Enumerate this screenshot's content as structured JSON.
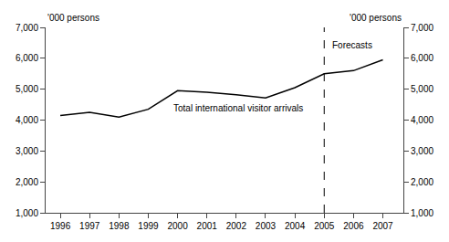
{
  "chart_data": {
    "type": "line",
    "x": [
      1996,
      1997,
      1998,
      1999,
      2000,
      2001,
      2002,
      2003,
      2004,
      2005,
      2006,
      2007
    ],
    "values": [
      4150,
      4250,
      4100,
      4350,
      4950,
      4900,
      4820,
      4720,
      5050,
      5500,
      5600,
      5950
    ],
    "color": "#000000",
    "vline": {
      "x": 2005,
      "color": "#000000",
      "line_style": "dashed"
    },
    "annotations": [
      {
        "text": "Total international visitor arrivals",
        "x": 1999.8,
        "y": 4380
      },
      {
        "text": "Forecasts",
        "x": 2005.2,
        "y": 6650
      }
    ],
    "y_label": "'000 persons",
    "y2_label": "'000 persons",
    "xlim": [
      1995.5,
      2007.7
    ],
    "xticks": [
      1996,
      1997,
      1998,
      1999,
      2000,
      2001,
      2002,
      2003,
      2004,
      2005,
      2006,
      2007
    ],
    "ylim": [
      1000,
      7000
    ],
    "yticks": [
      {
        "value": 1000,
        "label": "1,000"
      },
      {
        "value": 2000,
        "label": "2,000"
      },
      {
        "value": 3000,
        "label": "3,000"
      },
      {
        "value": 4000,
        "label": "4,000"
      },
      {
        "value": 5000,
        "label": "5,000"
      },
      {
        "value": 6000,
        "label": "6,000"
      },
      {
        "value": 7000,
        "label": "7,000"
      }
    ],
    "y2lim": [
      1000,
      7000
    ],
    "y2ticks": [
      {
        "value": 1000,
        "label": "1,000"
      },
      {
        "value": 2000,
        "label": "2,000"
      },
      {
        "value": 3000,
        "label": "3,000"
      },
      {
        "value": 4000,
        "label": "4,000"
      },
      {
        "value": 5000,
        "label": "5,000"
      },
      {
        "value": 6000,
        "label": "6,000"
      },
      {
        "value": 7000,
        "label": "7,000"
      }
    ],
    "grid": false
  }
}
